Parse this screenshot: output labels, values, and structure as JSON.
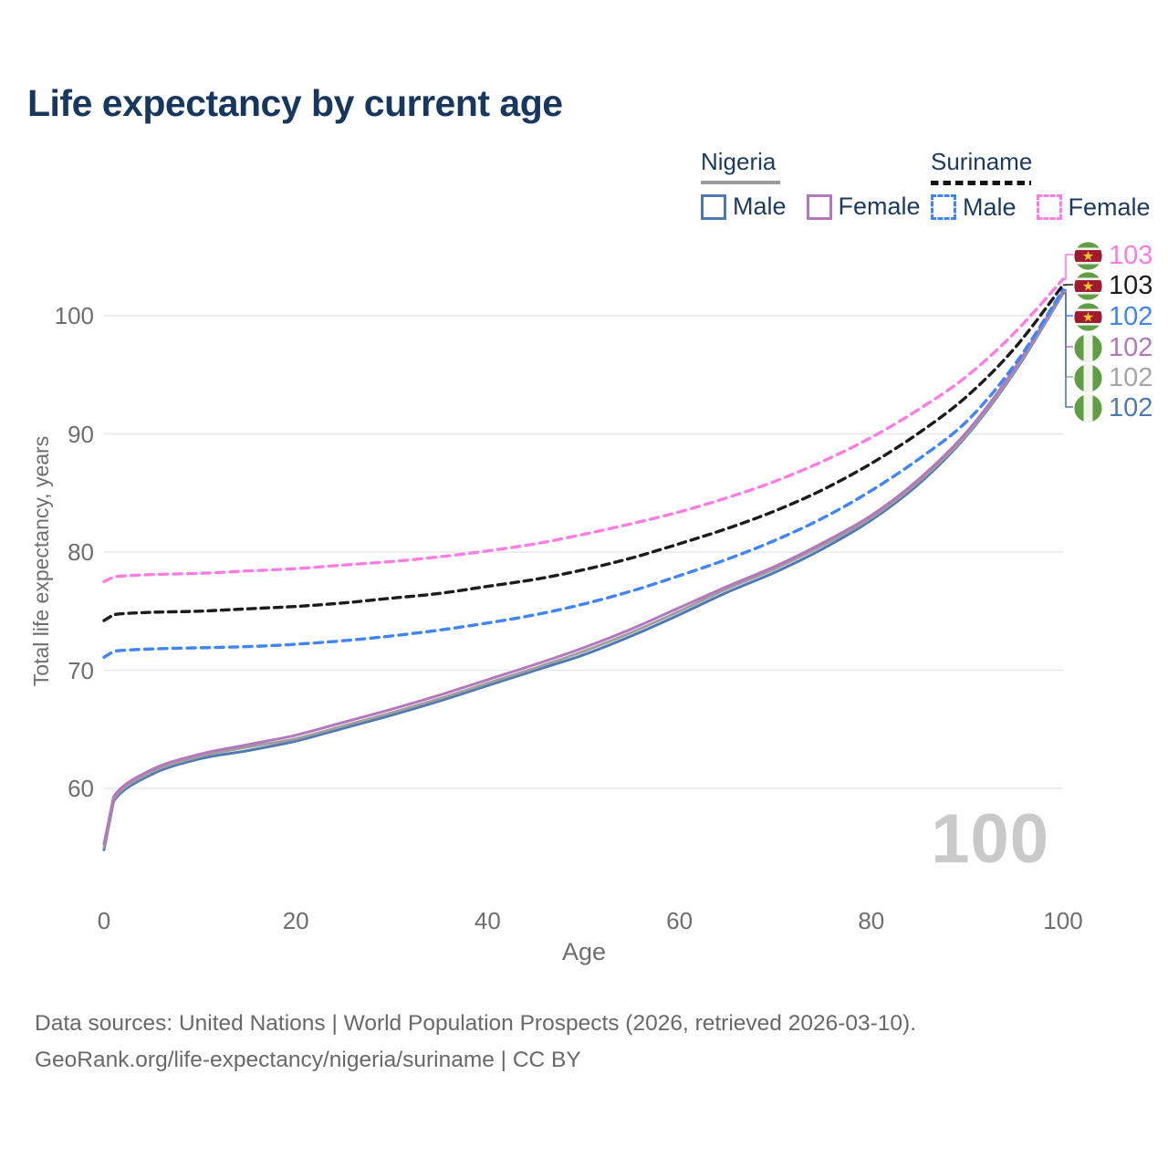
{
  "header": {
    "title": "Life expectancy by current age"
  },
  "legend": {
    "groups": [
      {
        "country": "Nigeria",
        "line_style": "solid",
        "underline_color": "#9c9c9c",
        "items": [
          {
            "label": "Male",
            "color": "#4e79b2",
            "box_style": "solid"
          },
          {
            "label": "Female",
            "color": "#b577bb",
            "box_style": "solid"
          }
        ]
      },
      {
        "country": "Suriname",
        "line_style": "dashed",
        "underline_color": "#141414",
        "items": [
          {
            "label": "Male",
            "color": "#3f85f5",
            "box_style": "dashed"
          },
          {
            "label": "Female",
            "color": "#ff7ce4",
            "box_style": "dashed"
          }
        ]
      }
    ]
  },
  "chart_data": {
    "type": "line",
    "title": "Life expectancy by current age",
    "xlabel": "Age",
    "ylabel": "Total life expectancy, years",
    "xlim": [
      0,
      100
    ],
    "ylim": [
      54,
      104
    ],
    "xticks": [
      0,
      20,
      40,
      60,
      80,
      100
    ],
    "yticks": [
      60,
      70,
      80,
      90,
      100
    ],
    "grid": true,
    "legend_position": "top-right",
    "x": [
      0,
      1,
      5,
      10,
      15,
      20,
      25,
      30,
      35,
      40,
      45,
      50,
      55,
      60,
      65,
      70,
      75,
      80,
      85,
      90,
      95,
      100
    ],
    "series": [
      {
        "name": "nigeria_male",
        "country": "Nigeria",
        "sex": "Male",
        "style": "solid",
        "color": "#4e79b2",
        "values": [
          54.8,
          58.9,
          61.2,
          62.5,
          63.2,
          64.0,
          65.1,
          66.2,
          67.4,
          68.7,
          70.0,
          71.3,
          72.9,
          74.7,
          76.6,
          78.3,
          80.3,
          82.7,
          85.8,
          89.9,
          95.3,
          101.9
        ]
      },
      {
        "name": "nigeria_both",
        "country": "Nigeria",
        "sex": "Both",
        "style": "solid",
        "color": "#9e9e9e",
        "values": [
          55.0,
          59.1,
          61.4,
          62.7,
          63.5,
          64.2,
          65.3,
          66.4,
          67.6,
          68.9,
          70.2,
          71.6,
          73.2,
          75.0,
          76.9,
          78.6,
          80.6,
          82.9,
          86.0,
          90.0,
          95.4,
          102.0
        ]
      },
      {
        "name": "nigeria_female",
        "country": "Nigeria",
        "sex": "Female",
        "style": "solid",
        "color": "#b577bb",
        "values": [
          55.3,
          59.3,
          61.6,
          62.9,
          63.7,
          64.5,
          65.6,
          66.7,
          67.9,
          69.2,
          70.5,
          71.9,
          73.5,
          75.3,
          77.1,
          78.8,
          80.8,
          83.1,
          86.2,
          90.2,
          95.6,
          102.1
        ]
      },
      {
        "name": "suriname_male",
        "country": "Suriname",
        "sex": "Male",
        "style": "dashed",
        "color": "#3f85f5",
        "values": [
          71.1,
          71.6,
          71.8,
          71.9,
          72.0,
          72.2,
          72.5,
          72.9,
          73.4,
          74.0,
          74.7,
          75.6,
          76.7,
          78.0,
          79.4,
          81.0,
          82.9,
          85.2,
          87.9,
          91.1,
          95.9,
          102.2
        ]
      },
      {
        "name": "suriname_both",
        "country": "Suriname",
        "sex": "Both",
        "style": "dashed",
        "color": "#1c1c1c",
        "values": [
          74.2,
          74.7,
          74.9,
          75.0,
          75.2,
          75.4,
          75.7,
          76.1,
          76.5,
          77.1,
          77.7,
          78.5,
          79.5,
          80.7,
          82.0,
          83.5,
          85.3,
          87.5,
          90.1,
          93.2,
          97.3,
          102.6
        ]
      },
      {
        "name": "suriname_female",
        "country": "Suriname",
        "sex": "Female",
        "style": "dashed",
        "color": "#ff7ce4",
        "values": [
          77.5,
          77.9,
          78.1,
          78.2,
          78.4,
          78.6,
          78.9,
          79.2,
          79.6,
          80.1,
          80.7,
          81.5,
          82.4,
          83.4,
          84.6,
          86.0,
          87.7,
          89.7,
          92.1,
          94.9,
          98.6,
          103.1
        ]
      }
    ],
    "end_labels": [
      {
        "series": "suriname_female",
        "value": "103",
        "color": "#ff7ce4",
        "flag": "suriname-flag-icon"
      },
      {
        "series": "suriname_both",
        "value": "103",
        "color": "#1c1c1c",
        "flag": "suriname-flag-icon"
      },
      {
        "series": "suriname_male",
        "value": "102",
        "color": "#3f85f5",
        "flag": "suriname-flag-icon"
      },
      {
        "series": "nigeria_female",
        "value": "102",
        "color": "#b577bb",
        "flag": "nigeria-flag-icon"
      },
      {
        "series": "nigeria_both",
        "value": "102",
        "color": "#a6a6a6",
        "flag": "nigeria-flag-icon"
      },
      {
        "series": "nigeria_male",
        "value": "102",
        "color": "#4e79b2",
        "flag": "nigeria-flag-icon"
      }
    ]
  },
  "watermark": "100",
  "footer": {
    "line1": "Data sources: United Nations | World Population Prospects (2026, retrieved 2026-03-10).",
    "line2": "GeoRank.org/life-expectancy/nigeria/suriname | CC BY"
  },
  "colors": {
    "title_text": "#17375e",
    "legend_text": "#1b3a5e",
    "axis_text": "#6e6e6e",
    "gridline": "#e8e8e8",
    "watermark": "#c9c9c9",
    "footer_text": "#686868",
    "flag_green": "#5f9e45",
    "flag_red": "#a01a31",
    "flag_star": "#f2c12e",
    "flag_white": "#f3f3ee"
  }
}
